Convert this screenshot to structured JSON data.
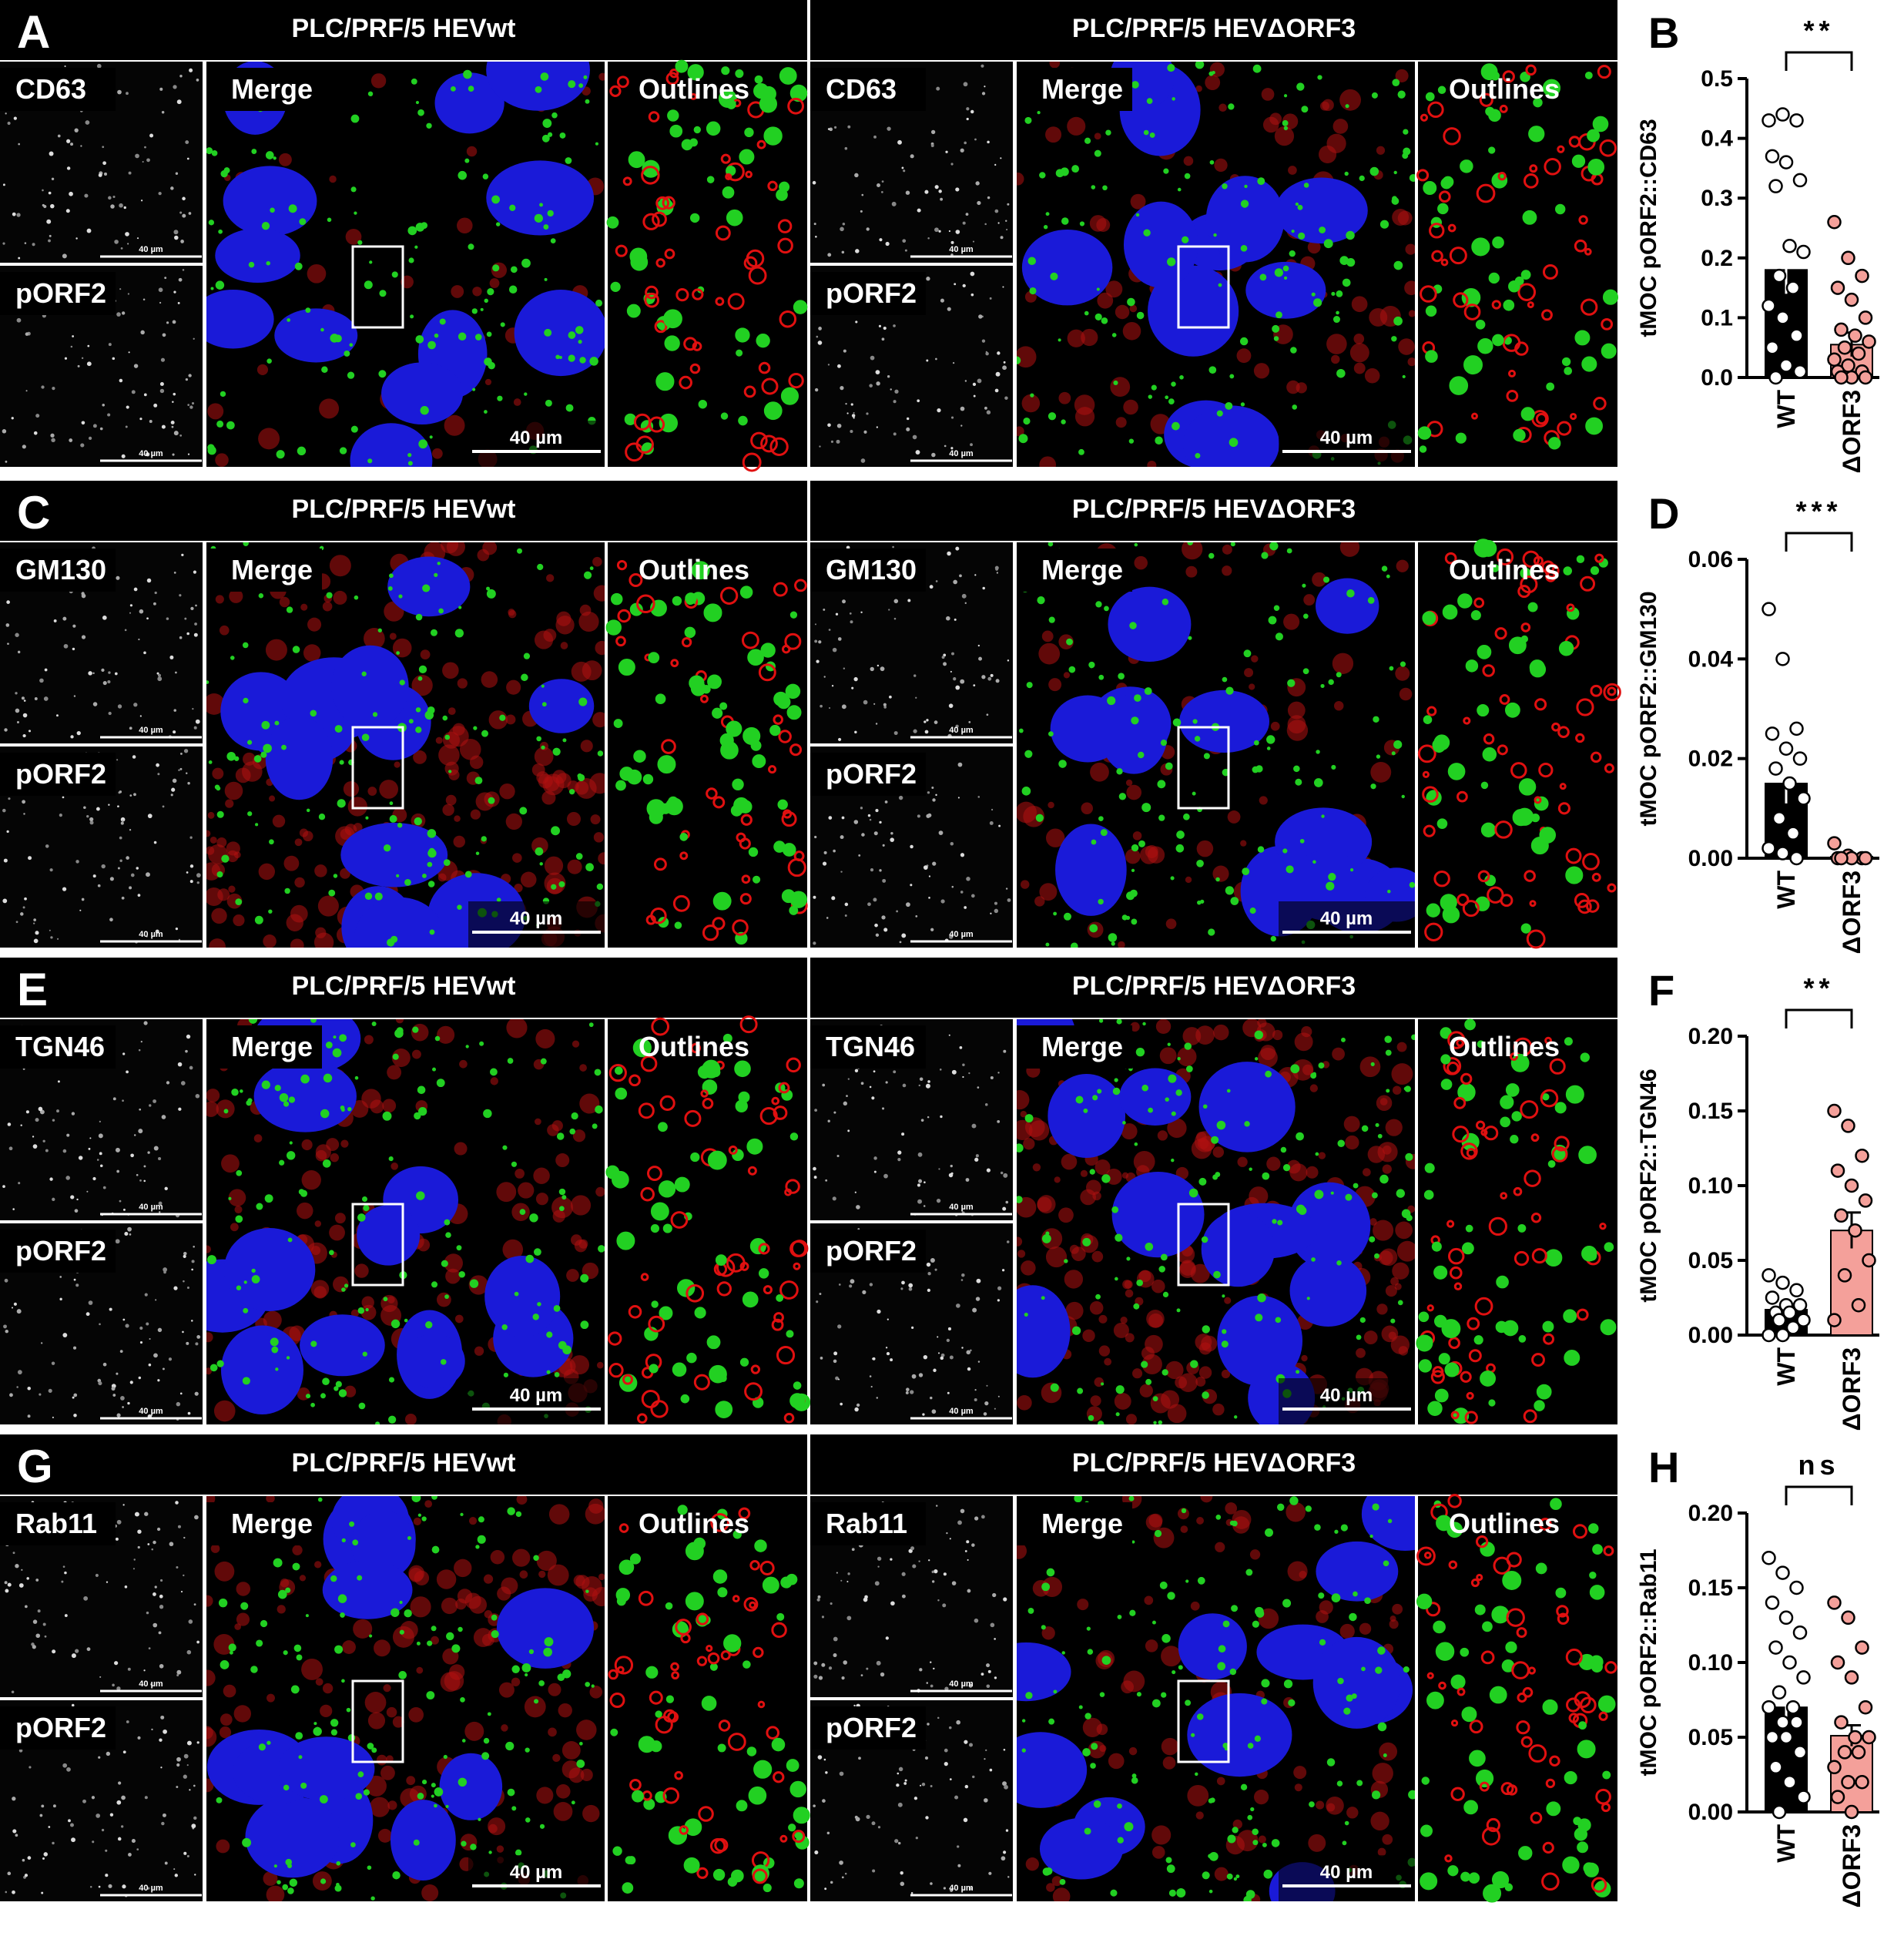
{
  "figure": {
    "rows": [
      {
        "letter": "A",
        "sides": [
          {
            "title": "PLC/PRF/5 HEVwt",
            "marker": "CD63",
            "second": "pORF2",
            "merge": "Merge",
            "outlines": "Outlines",
            "scale_labels": [
              "40 µm",
              "40 µm",
              "40 µm"
            ]
          },
          {
            "title": "PLC/PRF/5 HEVΔORF3",
            "marker": "CD63",
            "second": "pORF2",
            "merge": "Merge",
            "outlines": "Outlines",
            "scale_labels": [
              "40 µm",
              "40 µm",
              "40 µm"
            ]
          }
        ]
      },
      {
        "letter": "C",
        "sides": [
          {
            "title": "PLC/PRF/5 HEVwt",
            "marker": "GM130",
            "second": "pORF2",
            "merge": "Merge",
            "outlines": "Outlines",
            "scale_labels": [
              "40 µm",
              "40 µm",
              "40 µm"
            ]
          },
          {
            "title": "PLC/PRF/5 HEVΔORF3",
            "marker": "GM130",
            "second": "pORF2",
            "merge": "Merge",
            "outlines": "Outlines",
            "scale_labels": [
              "40 µm",
              "40 µm",
              "40 µm"
            ]
          }
        ]
      },
      {
        "letter": "E",
        "sides": [
          {
            "title": "PLC/PRF/5 HEVwt",
            "marker": "TGN46",
            "second": "pORF2",
            "merge": "Merge",
            "outlines": "Outlines",
            "scale_labels": [
              "40 µm",
              "40 µm",
              "40 µm"
            ]
          },
          {
            "title": "PLC/PRF/5 HEVΔORF3",
            "marker": "TGN46",
            "second": "pORF2",
            "merge": "Merge",
            "outlines": "Outlines",
            "scale_labels": [
              "40 µm",
              "40 µm",
              "40 µm"
            ]
          }
        ]
      },
      {
        "letter": "G",
        "sides": [
          {
            "title": "PLC/PRF/5 HEVwt",
            "marker": "Rab11",
            "second": "pORF2",
            "merge": "Merge",
            "outlines": "Outlines",
            "scale_labels": [
              "40 µm",
              "40 µm",
              "40 µm"
            ]
          },
          {
            "title": "PLC/PRF/5 HEVΔORF3",
            "marker": "Rab11",
            "second": "pORF2",
            "merge": "Merge",
            "outlines": "Outlines",
            "scale_labels": [
              "40 µm",
              "40 µm",
              "40 µm"
            ]
          }
        ]
      }
    ]
  },
  "chart_data": [
    {
      "type": "bar",
      "letter": "B",
      "ylabel": "tMOC pORF2::CD63",
      "categories": [
        "WT",
        "ΔORF3"
      ],
      "values": [
        0.18,
        0.055
      ],
      "errors": [
        0.04,
        0.02
      ],
      "colors": [
        "#000000",
        "#f4a09a"
      ],
      "point_colors": [
        "#ffffff",
        "#f4a09a"
      ],
      "points": [
        [
          0.43,
          0.44,
          0.43,
          0.37,
          0.36,
          0.33,
          0.32,
          0.22,
          0.21,
          0.17,
          0.15,
          0.12,
          0.1,
          0.07,
          0.05,
          0.02,
          0.01,
          0.0
        ],
        [
          0.26,
          0.2,
          0.17,
          0.15,
          0.13,
          0.1,
          0.08,
          0.07,
          0.06,
          0.05,
          0.04,
          0.03,
          0.02,
          0.01,
          0.01,
          0.0,
          0.0,
          0.0
        ]
      ],
      "significance": "**",
      "ylim": [
        0,
        0.5
      ],
      "yticks": [
        {
          "value": 0,
          "label": "0.0"
        },
        0.1,
        0.2,
        0.3,
        0.4,
        0.5
      ]
    },
    {
      "type": "bar",
      "letter": "D",
      "ylabel": "tMOC pORF2::GM130",
      "categories": [
        "WT",
        "ΔORF3"
      ],
      "values": [
        0.015,
        0.0003
      ],
      "errors": [
        0.004,
        0.0003
      ],
      "colors": [
        "#000000",
        "#f4a09a"
      ],
      "point_colors": [
        "#ffffff",
        "#f4a09a"
      ],
      "points": [
        [
          0.05,
          0.04,
          0.026,
          0.025,
          0.022,
          0.02,
          0.018,
          0.015,
          0.012,
          0.008,
          0.005,
          0.002,
          0.001,
          0.0
        ],
        [
          0.003,
          0.0005,
          0.0,
          0.0,
          0.0,
          0.0,
          0.0
        ]
      ],
      "significance": "***",
      "ylim": [
        0,
        0.06
      ],
      "yticks": [
        {
          "value": 0,
          "label": "0.00"
        },
        {
          "value": 0.02,
          "label": "0.02"
        },
        {
          "value": 0.04,
          "label": "0.04"
        },
        {
          "value": 0.06,
          "label": "0.06"
        }
      ]
    },
    {
      "type": "bar",
      "letter": "F",
      "ylabel": "tMOC pORF2::TGN46",
      "categories": [
        "WT",
        "ΔORF3"
      ],
      "values": [
        0.017,
        0.07
      ],
      "errors": [
        0.004,
        0.012
      ],
      "colors": [
        "#000000",
        "#f4a09a"
      ],
      "point_colors": [
        "#ffffff",
        "#f4a09a"
      ],
      "points": [
        [
          0.04,
          0.035,
          0.03,
          0.025,
          0.02,
          0.02,
          0.015,
          0.015,
          0.01,
          0.01,
          0.005,
          0.0,
          0.0
        ],
        [
          0.15,
          0.14,
          0.12,
          0.11,
          0.1,
          0.09,
          0.08,
          0.07,
          0.05,
          0.04,
          0.02,
          0.01
        ]
      ],
      "significance": "**",
      "ylim": [
        0,
        0.2
      ],
      "yticks": [
        {
          "value": 0,
          "label": "0.00"
        },
        0.05,
        {
          "value": 0.1,
          "label": "0.10"
        },
        0.15,
        {
          "value": 0.2,
          "label": "0.20"
        }
      ]
    },
    {
      "type": "bar",
      "letter": "H",
      "ylabel": "tMOC pORF2::Rab11",
      "categories": [
        "WT",
        "ΔORF3"
      ],
      "values": [
        0.07,
        0.051
      ],
      "errors": [
        0.008,
        0.007
      ],
      "colors": [
        "#000000",
        "#f4a09a"
      ],
      "point_colors": [
        "#ffffff",
        "#f4a09a"
      ],
      "points": [
        [
          0.17,
          0.16,
          0.15,
          0.14,
          0.13,
          0.12,
          0.11,
          0.1,
          0.09,
          0.08,
          0.07,
          0.07,
          0.06,
          0.06,
          0.05,
          0.05,
          0.04,
          0.03,
          0.02,
          0.01,
          0.0
        ],
        [
          0.14,
          0.13,
          0.11,
          0.1,
          0.09,
          0.07,
          0.06,
          0.05,
          0.05,
          0.04,
          0.04,
          0.03,
          0.02,
          0.02,
          0.01,
          0.0
        ]
      ],
      "significance": "ns",
      "ylim": [
        0,
        0.2
      ],
      "yticks": [
        {
          "value": 0,
          "label": "0.00"
        },
        0.05,
        {
          "value": 0.1,
          "label": "0.10"
        },
        0.15,
        {
          "value": 0.2,
          "label": "0.20"
        }
      ]
    }
  ]
}
